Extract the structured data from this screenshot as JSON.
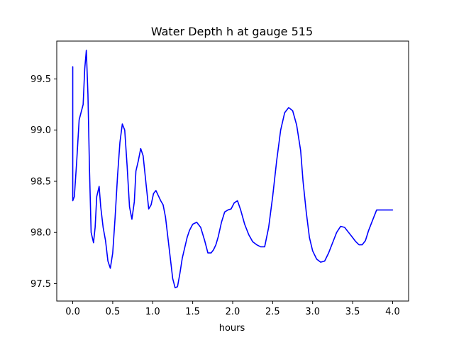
{
  "chart_data": {
    "type": "line",
    "title": "Water Depth h at gauge 515",
    "xlabel": "hours",
    "ylabel": "",
    "xlim": [
      -0.2,
      4.2
    ],
    "ylim": [
      97.33,
      99.87
    ],
    "xticks": [
      0.0,
      0.5,
      1.0,
      1.5,
      2.0,
      2.5,
      3.0,
      3.5,
      4.0
    ],
    "xtick_labels": [
      "0.0",
      "0.5",
      "1.0",
      "1.5",
      "2.0",
      "2.5",
      "3.0",
      "3.5",
      "4.0"
    ],
    "yticks": [
      97.5,
      98.0,
      98.5,
      99.0,
      99.5
    ],
    "ytick_labels": [
      "97.5",
      "98.0",
      "98.5",
      "99.0",
      "99.5"
    ],
    "grid": false,
    "series": [
      {
        "color": "#0000ff",
        "x": [
          0.0,
          0.0,
          0.02,
          0.05,
          0.08,
          0.11,
          0.13,
          0.15,
          0.17,
          0.19,
          0.21,
          0.23,
          0.26,
          0.28,
          0.3,
          0.33,
          0.35,
          0.38,
          0.41,
          0.44,
          0.47,
          0.5,
          0.53,
          0.56,
          0.59,
          0.62,
          0.65,
          0.68,
          0.71,
          0.74,
          0.77,
          0.79,
          0.82,
          0.85,
          0.88,
          0.92,
          0.95,
          0.98,
          1.01,
          1.04,
          1.07,
          1.1,
          1.13,
          1.16,
          1.19,
          1.22,
          1.25,
          1.28,
          1.31,
          1.34,
          1.37,
          1.4,
          1.43,
          1.46,
          1.5,
          1.55,
          1.6,
          1.65,
          1.69,
          1.73,
          1.76,
          1.79,
          1.82,
          1.86,
          1.9,
          1.94,
          1.98,
          2.02,
          2.06,
          2.1,
          2.15,
          2.2,
          2.25,
          2.3,
          2.35,
          2.4,
          2.45,
          2.5,
          2.55,
          2.6,
          2.65,
          2.7,
          2.75,
          2.8,
          2.85,
          2.88,
          2.92,
          2.96,
          3.0,
          3.05,
          3.1,
          3.15,
          3.2,
          3.25,
          3.3,
          3.35,
          3.4,
          3.45,
          3.5,
          3.54,
          3.58,
          3.62,
          3.66,
          3.7,
          3.75,
          3.8,
          3.85,
          3.9,
          3.95,
          4.0
        ],
        "y": [
          99.62,
          98.31,
          98.35,
          98.7,
          99.1,
          99.19,
          99.25,
          99.6,
          99.78,
          99.35,
          98.6,
          98.0,
          97.9,
          98.05,
          98.35,
          98.45,
          98.25,
          98.05,
          97.92,
          97.72,
          97.65,
          97.8,
          98.15,
          98.55,
          98.88,
          99.06,
          99.0,
          98.65,
          98.25,
          98.13,
          98.3,
          98.6,
          98.7,
          98.82,
          98.75,
          98.45,
          98.23,
          98.27,
          98.38,
          98.41,
          98.36,
          98.31,
          98.27,
          98.15,
          97.95,
          97.75,
          97.55,
          97.46,
          97.47,
          97.6,
          97.75,
          97.85,
          97.95,
          98.02,
          98.08,
          98.1,
          98.05,
          97.92,
          97.8,
          97.8,
          97.83,
          97.88,
          97.96,
          98.1,
          98.2,
          98.22,
          98.23,
          98.29,
          98.31,
          98.22,
          98.08,
          97.98,
          97.91,
          97.88,
          97.86,
          97.86,
          98.05,
          98.35,
          98.7,
          99.0,
          99.17,
          99.22,
          99.19,
          99.05,
          98.8,
          98.5,
          98.2,
          97.95,
          97.82,
          97.74,
          97.71,
          97.72,
          97.8,
          97.9,
          98.0,
          98.06,
          98.05,
          98.0,
          97.95,
          97.91,
          97.88,
          97.88,
          97.92,
          98.02,
          98.12,
          98.22,
          98.22,
          98.22,
          98.22,
          98.22
        ]
      }
    ]
  }
}
